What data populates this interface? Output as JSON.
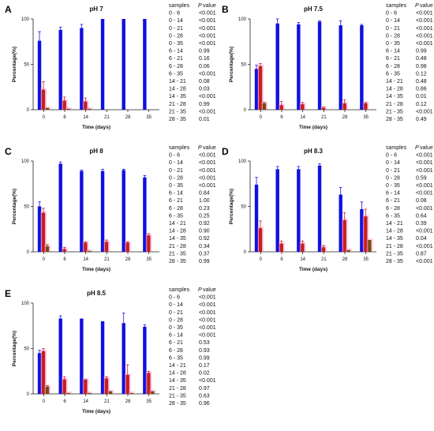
{
  "figure": {
    "colors": {
      "series1": "#1010e0",
      "series2": "#c81e1e",
      "series3": "#7a4a12",
      "series4": "#6b8e14",
      "halo": "#ff80c8"
    }
  },
  "chart_data": [
    {
      "type": "bar",
      "letter": "A",
      "title": "pH 7",
      "xlabel": "Time (days)",
      "ylabel": "Percentage(%)",
      "ylim": [
        0,
        100
      ],
      "yticks": [
        "0",
        "50",
        "100"
      ],
      "categories": [
        "0",
        "6",
        "14",
        "21",
        "28",
        "35"
      ],
      "series": [
        {
          "values": [
            76,
            88,
            90,
            100,
            100,
            100
          ],
          "errors": [
            10,
            3,
            4,
            0,
            0,
            0
          ]
        },
        {
          "values": [
            22,
            10,
            9,
            0,
            0,
            0
          ],
          "errors": [
            9,
            4,
            4,
            0,
            0,
            0
          ]
        },
        {
          "values": [
            2,
            1,
            1,
            0,
            0,
            0
          ],
          "errors": [
            0,
            0,
            0,
            0,
            0,
            0
          ]
        }
      ],
      "table": {
        "header": [
          "samples",
          "P",
          "value"
        ],
        "rows": [
          [
            "0 - 6",
            "<0.001"
          ],
          [
            "0 - 14",
            "<0.001"
          ],
          [
            "0 - 21",
            "<0.001"
          ],
          [
            "0 - 28",
            "<0.001"
          ],
          [
            "0 - 35",
            "<0.001"
          ],
          [
            "6 - 14",
            "0.99"
          ],
          [
            "6 - 21",
            "0.16"
          ],
          [
            "6 - 28",
            "0.06"
          ],
          [
            "6 - 35",
            "<0.001"
          ],
          [
            "14 - 21",
            "0.08"
          ],
          [
            "14 - 28",
            "0.03"
          ],
          [
            "14 - 35",
            "<0.001"
          ],
          [
            "21 - 28",
            "0.99"
          ],
          [
            "21 - 35",
            "<0.001"
          ],
          [
            "28 - 35",
            "0.01"
          ]
        ]
      }
    },
    {
      "type": "bar",
      "letter": "B",
      "title": "pH 7.5",
      "xlabel": "Time (days)",
      "ylabel": "Percentage(%)",
      "ylim": [
        0,
        100
      ],
      "yticks": [
        "0",
        "50",
        "100"
      ],
      "categories": [
        "0",
        "6",
        "14",
        "21",
        "28",
        "35"
      ],
      "series": [
        {
          "values": [
            45,
            95,
            94,
            97,
            93,
            93
          ],
          "errors": [
            4,
            5,
            2,
            1,
            5,
            1
          ]
        },
        {
          "values": [
            48,
            5,
            6,
            2,
            7,
            7
          ],
          "errors": [
            3,
            4,
            2,
            1,
            4,
            1
          ]
        },
        {
          "values": [
            7,
            0,
            0,
            0,
            0,
            0
          ],
          "errors": [
            1,
            0,
            0,
            0,
            0,
            0
          ]
        }
      ],
      "table": {
        "header": [
          "samples",
          "P",
          "value"
        ],
        "rows": [
          [
            "0 - 6",
            "<0.001"
          ],
          [
            "0 - 14",
            "<0.001"
          ],
          [
            "0 - 21",
            "<0.001"
          ],
          [
            "0 - 28",
            "<0.001"
          ],
          [
            "0 - 35",
            "<0.001"
          ],
          [
            "6 - 14",
            "0.99"
          ],
          [
            "6 - 21",
            "0.48"
          ],
          [
            "6 - 28",
            "0.98"
          ],
          [
            "6 - 35",
            "0.12"
          ],
          [
            "14 - 21",
            "0.48"
          ],
          [
            "14 - 28",
            "0.86"
          ],
          [
            "14 - 35",
            "0.01"
          ],
          [
            "21 - 28",
            "0.12"
          ],
          [
            "21 - 35",
            "<0.001"
          ],
          [
            "28 - 35",
            "0.49"
          ]
        ]
      }
    },
    {
      "type": "bar",
      "letter": "C",
      "title": "pH 8",
      "xlabel": "Time (days)",
      "ylabel": "Percentage(%)",
      "ylim": [
        0,
        100
      ],
      "yticks": [
        "0",
        "50",
        "100"
      ],
      "categories": [
        "0",
        "6",
        "14",
        "21",
        "28",
        "35"
      ],
      "series": [
        {
          "values": [
            50,
            97,
            89,
            89,
            90,
            82
          ],
          "errors": [
            5,
            2,
            1,
            2,
            1,
            2
          ]
        },
        {
          "values": [
            43,
            3,
            10,
            11,
            10,
            18
          ],
          "errors": [
            5,
            2,
            1,
            2,
            1,
            2
          ]
        },
        {
          "values": [
            6,
            0,
            1,
            0,
            0,
            0
          ],
          "errors": [
            2,
            0,
            0,
            0,
            0,
            0
          ]
        }
      ],
      "table": {
        "header": [
          "samples",
          "P",
          "value"
        ],
        "rows": [
          [
            "0 - 6",
            "<0.001"
          ],
          [
            "0 - 14",
            "<0.001"
          ],
          [
            "0 - 21",
            "<0.001"
          ],
          [
            "0 - 28",
            "<0.001"
          ],
          [
            "0 - 35",
            "<0.001"
          ],
          [
            "6 - 14",
            "0.84"
          ],
          [
            "6 - 21",
            "1.00"
          ],
          [
            "6 - 28",
            "0.23"
          ],
          [
            "6 - 35",
            "0.25"
          ],
          [
            "14 - 21",
            "0.92"
          ],
          [
            "14 - 28",
            "0.90"
          ],
          [
            "14 - 35",
            "0.92"
          ],
          [
            "21 - 28",
            "0.34"
          ],
          [
            "21 - 35",
            "0.37"
          ],
          [
            "28 - 35",
            "0.99"
          ]
        ]
      }
    },
    {
      "type": "bar",
      "letter": "D",
      "title": "pH 8.3",
      "xlabel": "Time (days)",
      "ylabel": "Percentage(%)",
      "ylim": [
        0,
        100
      ],
      "yticks": [
        "0",
        "50",
        "100"
      ],
      "categories": [
        "0",
        "6",
        "14",
        "21",
        "28",
        "35"
      ],
      "series": [
        {
          "values": [
            74,
            91,
            91,
            95,
            63,
            47
          ],
          "errors": [
            8,
            3,
            3,
            2,
            8,
            8
          ]
        },
        {
          "values": [
            26,
            9,
            9,
            5,
            35,
            39
          ],
          "errors": [
            8,
            3,
            3,
            2,
            8,
            8
          ]
        },
        {
          "values": [
            0,
            0,
            0,
            0,
            2,
            13
          ],
          "errors": [
            0,
            0,
            0,
            0,
            0,
            0
          ]
        }
      ],
      "table": {
        "header": [
          "samples",
          "P",
          "value"
        ],
        "rows": [
          [
            "0 - 6",
            "<0.001"
          ],
          [
            "0 - 14",
            "<0.001"
          ],
          [
            "0 - 21",
            "<0.001"
          ],
          [
            "0 - 28",
            "0.59"
          ],
          [
            "0 - 35",
            "<0.001"
          ],
          [
            "6 - 14",
            "<0.001"
          ],
          [
            "6 - 21",
            "0.08"
          ],
          [
            "6 - 28",
            "<0.001"
          ],
          [
            "6 - 35",
            "0.64"
          ],
          [
            "14 - 21",
            "0.39"
          ],
          [
            "14 - 28",
            "<0.001"
          ],
          [
            "14 - 35",
            "0.04"
          ],
          [
            "21 - 28",
            "<0.001"
          ],
          [
            "21 - 35",
            "0.87"
          ],
          [
            "28 - 35",
            "<0.001"
          ]
        ]
      }
    },
    {
      "type": "bar",
      "letter": "E",
      "title": "pH 8.5",
      "xlabel": "Time (days)",
      "ylabel": "Percentage(%)",
      "ylim": [
        0,
        100
      ],
      "yticks": [
        "0",
        "50",
        "100"
      ],
      "categories": [
        "0",
        "6",
        "14",
        "21",
        "28",
        "35"
      ],
      "series": [
        {
          "values": [
            45,
            83,
            83,
            80,
            78,
            74
          ],
          "errors": [
            3,
            3,
            0,
            0,
            11,
            2
          ]
        },
        {
          "values": [
            47,
            16,
            16,
            17,
            21,
            23
          ],
          "errors": [
            3,
            3,
            0,
            2,
            11,
            2
          ]
        },
        {
          "values": [
            8,
            1,
            1,
            3,
            1,
            3
          ],
          "errors": [
            1,
            0,
            0,
            0,
            0,
            0
          ]
        }
      ],
      "table": {
        "header": [
          "samples",
          "P",
          "value"
        ],
        "rows": [
          [
            "0 - 6",
            "<0.001"
          ],
          [
            "0 - 14",
            "<0.001"
          ],
          [
            "0 - 21",
            "<0.001"
          ],
          [
            "0 - 28",
            "<0.001"
          ],
          [
            "0 - 35",
            "<0.001"
          ],
          [
            "6 - 14",
            "<0.001"
          ],
          [
            "6 - 21",
            "0.53"
          ],
          [
            "6 - 28",
            "0.93"
          ],
          [
            "6 - 35",
            "0.99"
          ],
          [
            "14 - 21",
            "0.17"
          ],
          [
            "14 - 28",
            "0.02"
          ],
          [
            "14 - 35",
            "<0.001"
          ],
          [
            "21 - 28",
            "0.97"
          ],
          [
            "21 - 35",
            "0.63"
          ],
          [
            "28 - 35",
            "0.96"
          ]
        ]
      }
    }
  ]
}
